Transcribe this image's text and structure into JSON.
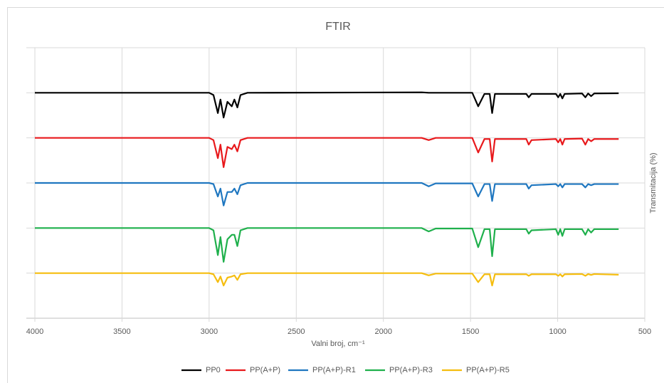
{
  "chart_data": {
    "type": "line",
    "title": "FTIR",
    "xlabel": "Valni broj, cm⁻¹",
    "ylabel": "Transmitacija (%)",
    "x": [
      4000,
      3000,
      2975,
      2950,
      2935,
      2917,
      2895,
      2870,
      2855,
      2838,
      2820,
      2780,
      1780,
      1740,
      1700,
      1490,
      1456,
      1420,
      1390,
      1376,
      1360,
      1180,
      1166,
      1150,
      1010,
      997,
      985,
      973,
      960,
      860,
      841,
      825,
      808,
      790,
      650
    ],
    "series": [
      {
        "name": "PP0",
        "color": "#000000",
        "values": [
          100,
          100,
          99,
          91,
          97,
          89,
          96,
          94,
          97,
          93.5,
          99,
          100,
          100.2,
          100,
          100,
          100,
          94,
          99.5,
          99.5,
          91,
          99.5,
          99.5,
          98,
          99.5,
          99.5,
          98,
          99.5,
          97.5,
          99.5,
          99.7,
          98,
          99.7,
          98.5,
          99.7,
          99.8
        ]
      },
      {
        "name": "PP(A+P)",
        "color": "#e8191c",
        "values": [
          80,
          80,
          79,
          71,
          77,
          67,
          76,
          75,
          77,
          74,
          79,
          80,
          80,
          79,
          80,
          80,
          73.5,
          79.5,
          79.5,
          69.5,
          79.5,
          79.5,
          77,
          79,
          79.5,
          78,
          79.5,
          77,
          79.5,
          79.7,
          77,
          79.5,
          78.5,
          79.5,
          79.5
        ]
      },
      {
        "name": "PP(A+P)-R1",
        "color": "#1f77c0",
        "values": [
          60,
          60,
          59.5,
          54,
          57.5,
          50,
          56,
          56,
          57.5,
          55,
          59,
          60,
          60,
          58.5,
          59.8,
          59.8,
          54,
          59.5,
          59.5,
          52,
          59.5,
          59.5,
          57.5,
          59,
          59.5,
          58.5,
          59.5,
          58,
          59.5,
          59.5,
          58,
          59.5,
          59,
          59.5,
          59.5
        ]
      },
      {
        "name": "PP(A+P)-R3",
        "color": "#1fb04c",
        "values": [
          40,
          40,
          39,
          28,
          36,
          25,
          35,
          37,
          37,
          32,
          39,
          40,
          40,
          38.5,
          39.8,
          39.8,
          31.5,
          39.5,
          39.5,
          27.5,
          39.5,
          39.5,
          37.5,
          39,
          39.5,
          37,
          39.5,
          36.5,
          39.5,
          39.5,
          37,
          39.5,
          38,
          39.5,
          39.5
        ]
      },
      {
        "name": "PP(A+P)-R5",
        "color": "#f5bd0f",
        "values": [
          20,
          20,
          19.5,
          16,
          18.5,
          14.5,
          18,
          18.5,
          19,
          17,
          19.5,
          20,
          20,
          19,
          19.8,
          19.8,
          16,
          19.5,
          19.5,
          14.5,
          19.5,
          19.5,
          18.8,
          19.5,
          19.5,
          18.8,
          19.5,
          18.5,
          19.5,
          19.6,
          18.8,
          19.6,
          19.2,
          19.6,
          19.3
        ]
      }
    ],
    "xlim": [
      4000,
      500
    ],
    "xticks": [
      4000,
      3500,
      3000,
      2500,
      2000,
      1500,
      1000,
      500
    ],
    "ylim": [
      0,
      120
    ],
    "yticks": [
      0,
      20,
      40,
      60,
      80,
      100,
      120
    ],
    "grid": true,
    "legend": "bottom"
  }
}
